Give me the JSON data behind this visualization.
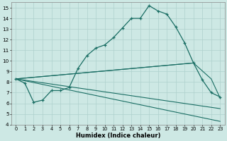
{
  "xlabel": "Humidex (Indice chaleur)",
  "bg_color": "#cde8e4",
  "grid_color": "#aed0cc",
  "line_color": "#1a6e64",
  "xlim": [
    -0.5,
    23.5
  ],
  "ylim": [
    4,
    15.5
  ],
  "xticks": [
    0,
    1,
    2,
    3,
    4,
    5,
    6,
    7,
    8,
    9,
    10,
    11,
    12,
    13,
    14,
    15,
    16,
    17,
    18,
    19,
    20,
    21,
    22,
    23
  ],
  "yticks": [
    4,
    5,
    6,
    7,
    8,
    9,
    10,
    11,
    12,
    13,
    14,
    15
  ],
  "curve1_x": [
    0,
    1,
    2,
    3,
    4,
    5,
    6,
    7,
    8,
    9,
    10,
    11,
    12,
    13,
    14,
    15,
    16,
    17,
    18,
    19,
    20,
    21,
    22,
    23
  ],
  "curve1_y": [
    8.3,
    7.9,
    6.1,
    6.3,
    7.2,
    7.2,
    7.5,
    9.3,
    10.5,
    11.2,
    11.5,
    12.2,
    13.1,
    14.0,
    14.0,
    15.2,
    14.7,
    14.4,
    13.2,
    11.7,
    9.8,
    8.2,
    7.0,
    6.6
  ],
  "curve2_x": [
    0,
    20
  ],
  "curve2_y": [
    8.3,
    9.8
  ],
  "curve3_x": [
    0,
    20,
    22,
    23
  ],
  "curve3_y": [
    8.3,
    9.8,
    8.3,
    6.5
  ],
  "curve4_x": [
    0,
    23
  ],
  "curve4_y": [
    8.3,
    4.3
  ],
  "curve5_x": [
    0,
    23
  ],
  "curve5_y": [
    8.3,
    5.5
  ]
}
